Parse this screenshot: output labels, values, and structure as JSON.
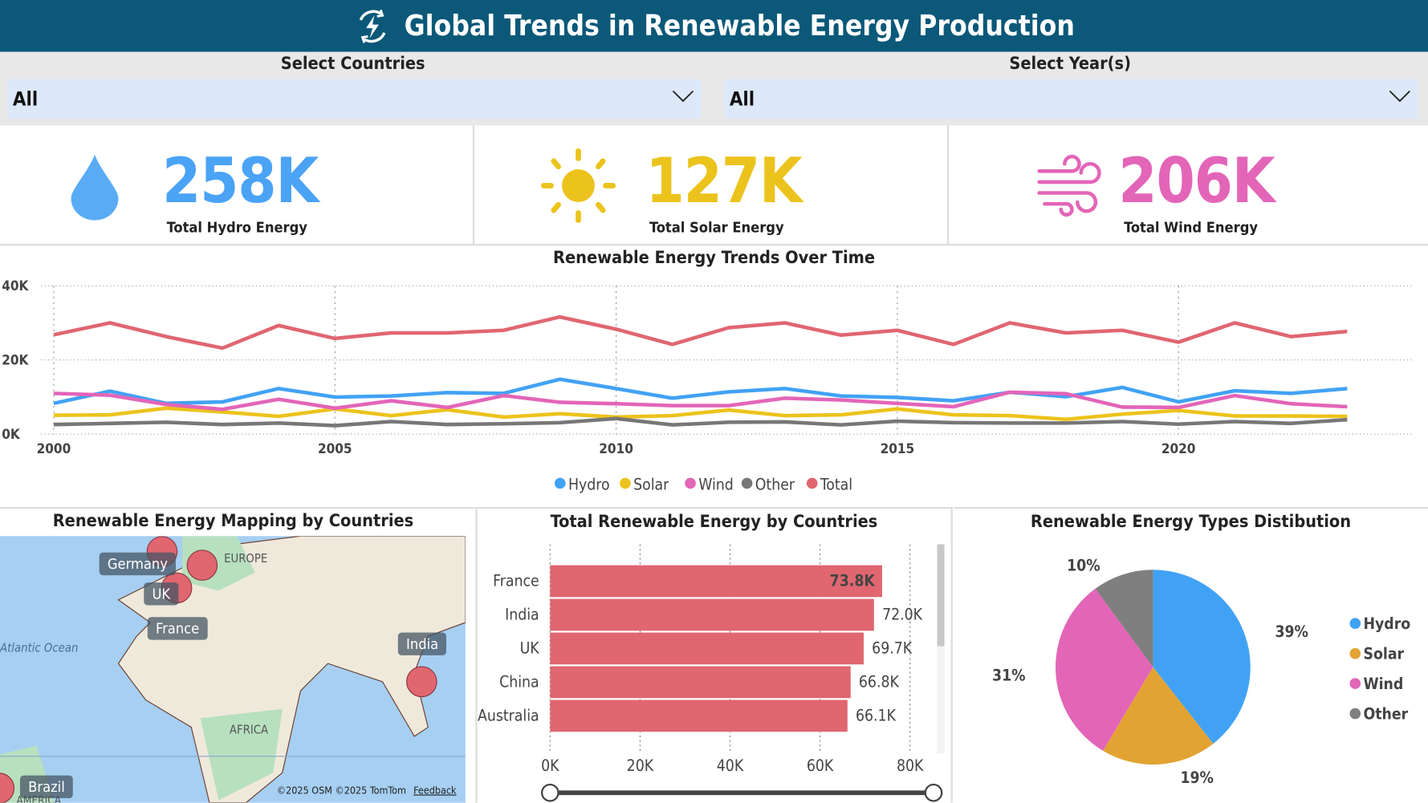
{
  "header": {
    "title": "Global Trends in Renewable Energy Production",
    "icon": "bolt-refresh-icon"
  },
  "filters": {
    "countries": {
      "label": "Select Countries",
      "value": "All"
    },
    "years": {
      "label": "Select Year(s)",
      "value": "All"
    }
  },
  "kpis": [
    {
      "value": "258K",
      "label": "Total Hydro Energy",
      "icon": "water-drop-icon",
      "color": "#4aa3f5"
    },
    {
      "value": "127K",
      "label": "Total Solar Energy",
      "icon": "sun-icon",
      "color": "#ecc31c"
    },
    {
      "value": "206K",
      "label": "Total Wind Energy",
      "icon": "wind-icon",
      "color": "#e365b8"
    }
  ],
  "map": {
    "title": "Renewable Energy Mapping by Countries",
    "labels": [
      "Germany",
      "UK",
      "France",
      "India",
      "Brazil"
    ],
    "regions": [
      "EUROPE",
      "AFRICA",
      "Atlantic Ocean",
      "AMERICA"
    ],
    "attribution": "©2025 OSM  ©2025 TomTom",
    "feedback": "Feedback"
  },
  "chart_data": [
    {
      "type": "line",
      "title": "Renewable Energy Trends Over Time",
      "x": [
        2000,
        2001,
        2002,
        2003,
        2004,
        2005,
        2006,
        2007,
        2008,
        2009,
        2010,
        2011,
        2012,
        2013,
        2014,
        2015,
        2016,
        2017,
        2018,
        2019,
        2020,
        2021,
        2022,
        2023
      ],
      "xticks": [
        "2000",
        "2005",
        "2010",
        "2015",
        "2020"
      ],
      "yticks": [
        "0K",
        "20K",
        "40K"
      ],
      "ylim": [
        0,
        40000
      ],
      "grid": true,
      "legend": "bottom",
      "series": [
        {
          "name": "Hydro",
          "color": "#41a2f5",
          "values": [
            8300,
            11600,
            8300,
            8700,
            12300,
            10000,
            10300,
            11200,
            11000,
            14800,
            12300,
            9700,
            11400,
            12300,
            10300,
            9900,
            9000,
            11300,
            10100,
            12600,
            8700,
            11700,
            11000,
            12300
          ]
        },
        {
          "name": "Solar",
          "color": "#ecc31c",
          "values": [
            5100,
            5200,
            7000,
            6000,
            4800,
            6800,
            5000,
            6600,
            4600,
            5500,
            4600,
            5000,
            6500,
            5000,
            5200,
            6800,
            5200,
            5000,
            4000,
            5400,
            6400,
            4900,
            4900,
            4800
          ]
        },
        {
          "name": "Wind",
          "color": "#e365b8",
          "values": [
            11000,
            10500,
            8000,
            6700,
            9400,
            7000,
            9000,
            7200,
            10400,
            8600,
            8200,
            7700,
            7700,
            9700,
            9200,
            8300,
            7400,
            11300,
            10900,
            7300,
            7200,
            10400,
            8200,
            7400
          ]
        },
        {
          "name": "Other",
          "color": "#777777",
          "values": [
            2600,
            2900,
            3200,
            2600,
            3000,
            2300,
            3400,
            2600,
            2800,
            3100,
            4200,
            2500,
            3200,
            3300,
            2500,
            3500,
            3100,
            3000,
            3000,
            3400,
            2700,
            3400,
            2900,
            3900
          ]
        },
        {
          "name": "Total",
          "color": "#e06670",
          "values": [
            26800,
            30000,
            26300,
            23200,
            29300,
            25800,
            27300,
            27300,
            28000,
            31600,
            28300,
            24200,
            28700,
            30000,
            26700,
            28000,
            24200,
            30000,
            27300,
            28000,
            24800,
            30000,
            26300,
            27700
          ]
        }
      ]
    },
    {
      "type": "bar",
      "title": "Total Renewable Energy by Countries",
      "categories": [
        "France",
        "India",
        "UK",
        "China",
        "Australia"
      ],
      "values": [
        73800,
        72000,
        69700,
        66800,
        66100
      ],
      "labels": [
        "73.8K",
        "72.0K",
        "69.7K",
        "66.8K",
        "66.1K"
      ],
      "xticks": [
        "0K",
        "20K",
        "40K",
        "60K",
        "80K"
      ],
      "xlim": [
        0,
        80000
      ],
      "color": "#e06670"
    },
    {
      "type": "pie",
      "title": "Renewable Energy Types Distibution",
      "categories": [
        "Hydro",
        "Solar",
        "Wind",
        "Other"
      ],
      "values": [
        39,
        19,
        31,
        10
      ],
      "labels": [
        "39%",
        "19%",
        "31%",
        "10%"
      ],
      "colors": [
        "#41a2f5",
        "#e2a333",
        "#e365b8",
        "#7f7f7f"
      ],
      "legend": "right"
    }
  ]
}
